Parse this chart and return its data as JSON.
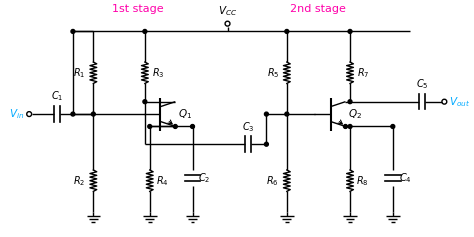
{
  "bg_color": "#ffffff",
  "line_color": "#000000",
  "pink": "#FF00AA",
  "cyan": "#00AAFF",
  "vcc_label": "$V_{CC}$",
  "vin_label": "$V_{in}$",
  "vout_label": "$V_{out}$",
  "stage1_label": "1st stage",
  "stage2_label": "2nd stage"
}
